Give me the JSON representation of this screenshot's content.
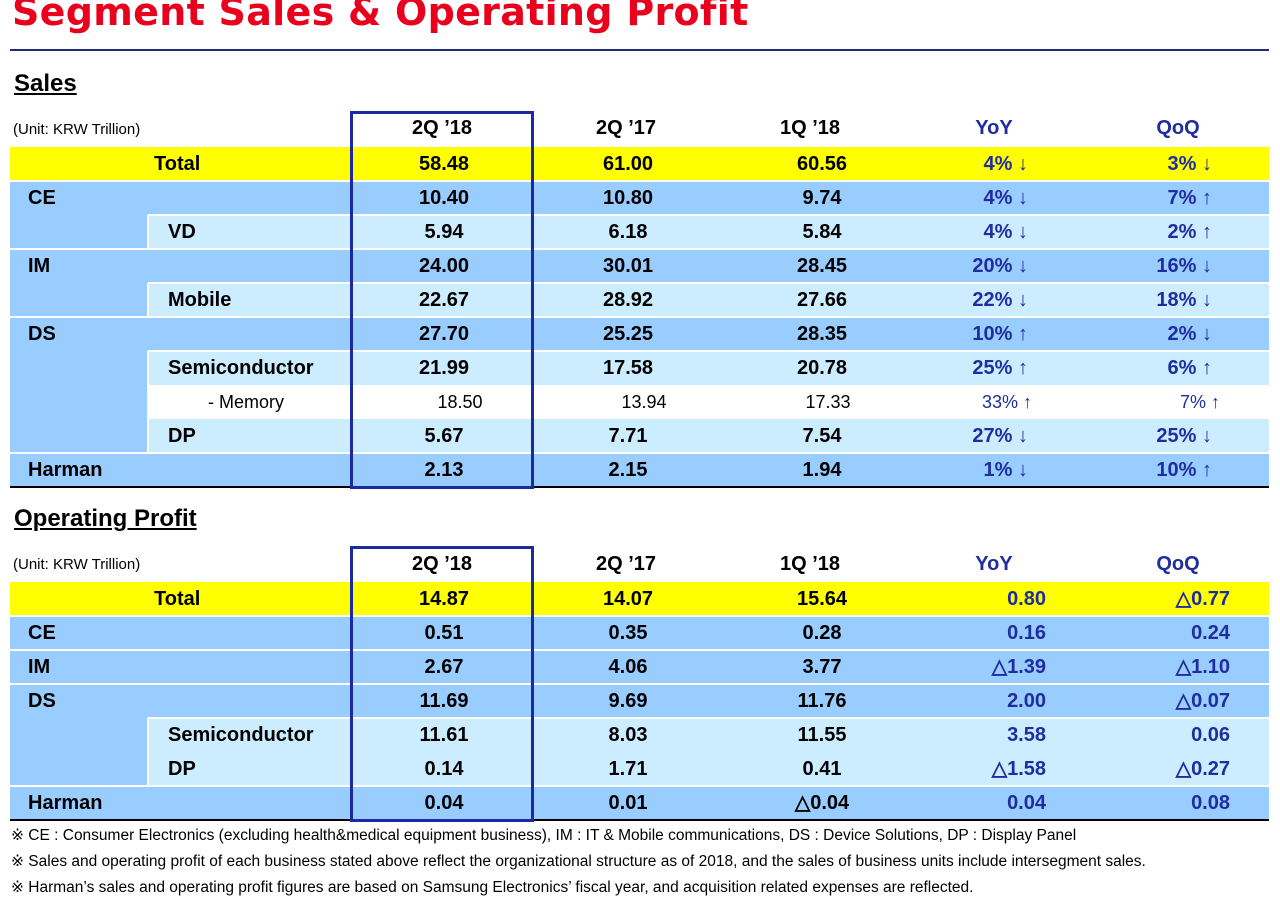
{
  "title": "Segment Sales & Operating Profit",
  "footnotes": [
    "※ CE : Consumer Electronics (excluding health&medical equipment business),  IM : IT & Mobile communications,  DS : Device Solutions,  DP : Display Panel",
    "※ Sales and operating profit of each business stated above reflect the organizational structure  as of 2018, and the sales of business units include intersegment sales.",
    "※ Harman’s sales and operating profit figures are based on Samsung Electronics’ fiscal year, and acquisition related expenses are reflected."
  ],
  "sales": {
    "title": "Sales",
    "unit": "(Unit: KRW Trillion)",
    "headers": [
      "2Q ’18",
      "2Q ’17",
      "1Q ’18",
      "YoY",
      "QoQ"
    ],
    "rows": [
      {
        "label": "Total",
        "values": [
          "58.48",
          "61.00",
          "60.56",
          "4% ↓",
          "3% ↓"
        ]
      },
      {
        "label": "CE",
        "values": [
          "10.40",
          "10.80",
          "9.74",
          "4% ↓",
          "7% ↑"
        ]
      },
      {
        "label": "VD",
        "values": [
          "5.94",
          "6.18",
          "5.84",
          "4% ↓",
          "2% ↑"
        ]
      },
      {
        "label": "IM",
        "values": [
          "24.00",
          "30.01",
          "28.45",
          "20% ↓",
          "16% ↓"
        ]
      },
      {
        "label": "Mobile",
        "values": [
          "22.67",
          "28.92",
          "27.66",
          "22% ↓",
          "18% ↓"
        ]
      },
      {
        "label": "DS",
        "values": [
          "27.70",
          "25.25",
          "28.35",
          "10% ↑",
          "2% ↓"
        ]
      },
      {
        "label": "Semiconductor",
        "values": [
          "21.99",
          "17.58",
          "20.78",
          "25% ↑",
          "6% ↑"
        ]
      },
      {
        "label": "- Memory",
        "values": [
          "18.50",
          "13.94",
          "17.33",
          "33% ↑",
          "7% ↑"
        ]
      },
      {
        "label": "DP",
        "values": [
          "5.67",
          "7.71",
          "7.54",
          "27% ↓",
          "25% ↓"
        ]
      },
      {
        "label": "Harman",
        "values": [
          "2.13",
          "2.15",
          "1.94",
          "1% ↓",
          "10% ↑"
        ]
      }
    ]
  },
  "operating_profit": {
    "title": "Operating Profit",
    "unit": "(Unit: KRW Trillion)",
    "headers": [
      "2Q ’18",
      "2Q ’17",
      "1Q ’18",
      "YoY",
      "QoQ"
    ],
    "rows": [
      {
        "label": "Total",
        "values": [
          "14.87",
          "14.07",
          "15.64",
          "0.80",
          "△0.77"
        ]
      },
      {
        "label": "CE",
        "values": [
          "0.51",
          "0.35",
          "0.28",
          "0.16",
          "0.24"
        ]
      },
      {
        "label": "IM",
        "values": [
          "2.67",
          "4.06",
          "3.77",
          "△1.39",
          "△1.10"
        ]
      },
      {
        "label": "DS",
        "values": [
          "11.69",
          "9.69",
          "11.76",
          "2.00",
          "△0.07"
        ]
      },
      {
        "label": "Semiconductor",
        "values": [
          "11.61",
          "8.03",
          "11.55",
          "3.58",
          "0.06"
        ]
      },
      {
        "label": "DP",
        "values": [
          "0.14",
          "1.71",
          "0.41",
          "△1.58",
          "△0.27"
        ]
      },
      {
        "label": "Harman",
        "values": [
          "0.04",
          "0.01",
          "△0.04",
          "0.04",
          "0.08"
        ]
      }
    ]
  }
}
